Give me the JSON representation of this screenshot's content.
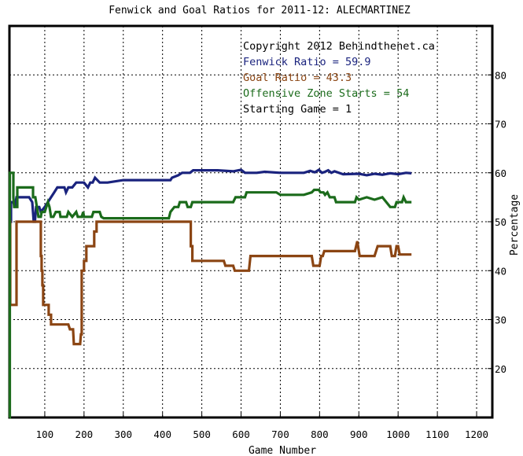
{
  "chart_data": {
    "type": "line",
    "title": "Fenwick and Goal Ratios for 2011-12: ALECMARTINEZ",
    "xlabel": "Game Number",
    "ylabel": "Percentage",
    "xlim": [
      10,
      1240
    ],
    "ylim": [
      10,
      90
    ],
    "x_ticks": [
      100,
      200,
      300,
      400,
      500,
      600,
      700,
      800,
      900,
      1000,
      1100,
      1200
    ],
    "y_ticks": [
      20,
      30,
      40,
      50,
      60,
      70,
      80
    ],
    "grid": true,
    "annotations": [
      {
        "text": "Copyright 2012 Behindthenet.ca",
        "color": "#000000"
      },
      {
        "text": "Fenwick Ratio = 59.9",
        "color": "#1a237e"
      },
      {
        "text": "Goal Ratio = 43.3",
        "color": "#8b4513"
      },
      {
        "text": "Offensive Zone Starts = 54",
        "color": "#1b6b1b"
      },
      {
        "text": "Starting Game = 1",
        "color": "#000000"
      }
    ],
    "series": [
      {
        "color": "#1a237e",
        "points": [
          [
            10,
            50
          ],
          [
            14,
            50
          ],
          [
            14,
            54
          ],
          [
            20,
            54
          ],
          [
            24,
            53
          ],
          [
            28,
            55
          ],
          [
            60,
            55
          ],
          [
            68,
            54
          ],
          [
            72,
            50
          ],
          [
            75,
            50
          ],
          [
            78,
            53
          ],
          [
            86,
            53
          ],
          [
            90,
            52
          ],
          [
            100,
            53
          ],
          [
            108,
            54
          ],
          [
            116,
            55
          ],
          [
            124,
            56
          ],
          [
            132,
            57
          ],
          [
            142,
            57
          ],
          [
            150,
            57
          ],
          [
            154,
            56
          ],
          [
            160,
            57
          ],
          [
            170,
            57
          ],
          [
            180,
            58
          ],
          [
            200,
            58
          ],
          [
            210,
            57
          ],
          [
            216,
            58
          ],
          [
            222,
            58
          ],
          [
            228,
            59
          ],
          [
            240,
            58
          ],
          [
            260,
            58
          ],
          [
            300,
            58.5
          ],
          [
            380,
            58.5
          ],
          [
            420,
            58.5
          ],
          [
            424,
            59
          ],
          [
            440,
            59.5
          ],
          [
            450,
            60
          ],
          [
            470,
            60
          ],
          [
            478,
            60.5
          ],
          [
            540,
            60.5
          ],
          [
            580,
            60.3
          ],
          [
            600,
            60.6
          ],
          [
            610,
            60
          ],
          [
            640,
            60
          ],
          [
            660,
            60.2
          ],
          [
            700,
            60
          ],
          [
            760,
            60
          ],
          [
            776,
            60.4
          ],
          [
            788,
            60.1
          ],
          [
            798,
            60.6
          ],
          [
            806,
            60
          ],
          [
            814,
            60.2
          ],
          [
            822,
            60.5
          ],
          [
            830,
            60
          ],
          [
            838,
            60.3
          ],
          [
            860,
            59.7
          ],
          [
            900,
            59.8
          ],
          [
            920,
            59.5
          ],
          [
            940,
            59.8
          ],
          [
            960,
            59.6
          ],
          [
            980,
            59.9
          ],
          [
            1000,
            59.7
          ],
          [
            1020,
            60
          ],
          [
            1034,
            59.9
          ]
        ]
      },
      {
        "color": "#8b4513",
        "points": [
          [
            10,
            50
          ],
          [
            12,
            50
          ],
          [
            12,
            33
          ],
          [
            28,
            33
          ],
          [
            28,
            50
          ],
          [
            90,
            50
          ],
          [
            90,
            43
          ],
          [
            92,
            43
          ],
          [
            92,
            40
          ],
          [
            94,
            40
          ],
          [
            94,
            37
          ],
          [
            96,
            37
          ],
          [
            96,
            33
          ],
          [
            110,
            33
          ],
          [
            110,
            31
          ],
          [
            116,
            31
          ],
          [
            116,
            29
          ],
          [
            160,
            29
          ],
          [
            164,
            28
          ],
          [
            172,
            28
          ],
          [
            174,
            25
          ],
          [
            190,
            25
          ],
          [
            192,
            27
          ],
          [
            194,
            27
          ],
          [
            194,
            40
          ],
          [
            200,
            40
          ],
          [
            200,
            42
          ],
          [
            206,
            42
          ],
          [
            206,
            45
          ],
          [
            226,
            45
          ],
          [
            226,
            48
          ],
          [
            232,
            48
          ],
          [
            232,
            50
          ],
          [
            472,
            50
          ],
          [
            472,
            45
          ],
          [
            476,
            45
          ],
          [
            476,
            42
          ],
          [
            556,
            42
          ],
          [
            560,
            41
          ],
          [
            580,
            41
          ],
          [
            584,
            40
          ],
          [
            620,
            40
          ],
          [
            624,
            43
          ],
          [
            780,
            43
          ],
          [
            784,
            41
          ],
          [
            800,
            41
          ],
          [
            804,
            43
          ],
          [
            808,
            43
          ],
          [
            812,
            44
          ],
          [
            890,
            44
          ],
          [
            896,
            46
          ],
          [
            902,
            43
          ],
          [
            940,
            43
          ],
          [
            944,
            44
          ],
          [
            948,
            45
          ],
          [
            980,
            45
          ],
          [
            984,
            43
          ],
          [
            992,
            43
          ],
          [
            996,
            45
          ],
          [
            1000,
            45
          ],
          [
            1004,
            43.3
          ],
          [
            1034,
            43.3
          ]
        ]
      },
      {
        "color": "#1b6b1b",
        "points": [
          [
            10,
            10
          ],
          [
            11,
            10
          ],
          [
            11,
            60
          ],
          [
            20,
            60
          ],
          [
            20,
            55
          ],
          [
            22,
            53
          ],
          [
            30,
            53
          ],
          [
            30,
            57
          ],
          [
            70,
            57
          ],
          [
            70,
            55
          ],
          [
            76,
            55
          ],
          [
            80,
            53
          ],
          [
            84,
            51
          ],
          [
            90,
            51
          ],
          [
            92,
            52
          ],
          [
            100,
            52
          ],
          [
            104,
            53
          ],
          [
            108,
            54
          ],
          [
            112,
            53
          ],
          [
            116,
            51
          ],
          [
            122,
            51
          ],
          [
            128,
            52
          ],
          [
            138,
            52
          ],
          [
            140,
            51
          ],
          [
            156,
            51
          ],
          [
            160,
            52
          ],
          [
            170,
            51
          ],
          [
            180,
            52
          ],
          [
            184,
            51
          ],
          [
            194,
            51
          ],
          [
            198,
            52
          ],
          [
            200,
            51
          ],
          [
            220,
            51
          ],
          [
            224,
            52
          ],
          [
            240,
            52
          ],
          [
            244,
            51
          ],
          [
            250,
            50.7
          ],
          [
            416,
            50.7
          ],
          [
            420,
            52
          ],
          [
            430,
            53
          ],
          [
            440,
            53
          ],
          [
            444,
            54
          ],
          [
            460,
            54
          ],
          [
            464,
            53
          ],
          [
            472,
            53
          ],
          [
            476,
            54
          ],
          [
            540,
            54
          ],
          [
            560,
            54
          ],
          [
            580,
            54
          ],
          [
            586,
            55
          ],
          [
            610,
            55
          ],
          [
            614,
            56
          ],
          [
            690,
            56
          ],
          [
            700,
            55.5
          ],
          [
            760,
            55.5
          ],
          [
            780,
            56
          ],
          [
            786,
            56.5
          ],
          [
            798,
            56.5
          ],
          [
            802,
            56
          ],
          [
            810,
            56
          ],
          [
            814,
            55.5
          ],
          [
            820,
            56
          ],
          [
            826,
            55
          ],
          [
            838,
            55
          ],
          [
            842,
            54
          ],
          [
            890,
            54
          ],
          [
            894,
            55
          ],
          [
            900,
            54.5
          ],
          [
            920,
            55
          ],
          [
            940,
            54.5
          ],
          [
            960,
            55
          ],
          [
            980,
            53
          ],
          [
            992,
            53
          ],
          [
            996,
            54
          ],
          [
            1010,
            54
          ],
          [
            1014,
            55
          ],
          [
            1020,
            54
          ],
          [
            1034,
            54
          ]
        ]
      }
    ]
  }
}
